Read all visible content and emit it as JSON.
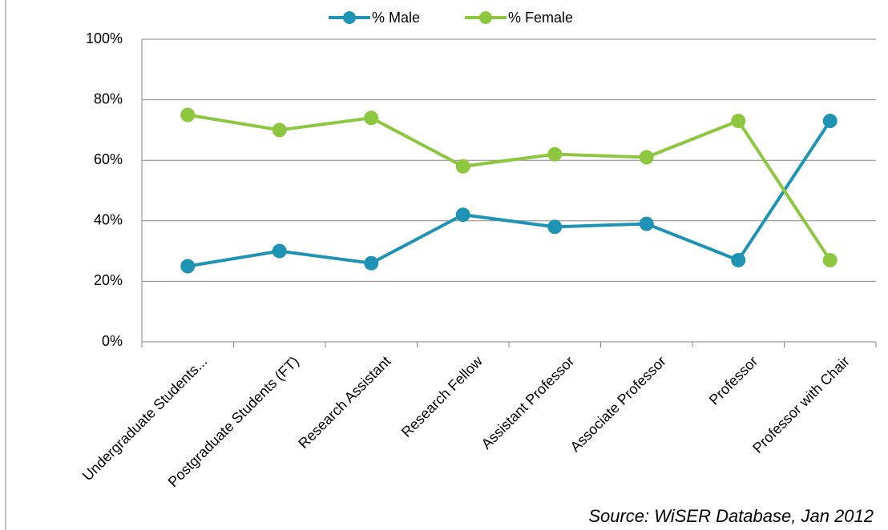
{
  "chart_data": {
    "type": "line",
    "categories": [
      "Undergraduate Students...",
      "Postgraduate Students (FT)",
      "Research Assistant",
      "Research Fellow",
      "Assistant Professor",
      "Associate Professor",
      "Professor",
      "Professor with Chair"
    ],
    "series": [
      {
        "name": "% Male",
        "color": "#1f93b3",
        "values": [
          25,
          30,
          26,
          42,
          38,
          39,
          27,
          73
        ]
      },
      {
        "name": "% Female",
        "color": "#8dc63f",
        "values": [
          75,
          70,
          74,
          58,
          62,
          61,
          73,
          27
        ]
      }
    ],
    "ylim": [
      0,
      100
    ],
    "yticks": [
      {
        "value": 0,
        "label": "0%"
      },
      {
        "value": 20,
        "label": "20%"
      },
      {
        "value": 40,
        "label": "40%"
      },
      {
        "value": 60,
        "label": "60%"
      },
      {
        "value": 80,
        "label": "80%"
      },
      {
        "value": 100,
        "label": "100%"
      }
    ],
    "grid": true,
    "legend": "top",
    "annotation": "Source: WiSER Database, Jan 2012"
  }
}
